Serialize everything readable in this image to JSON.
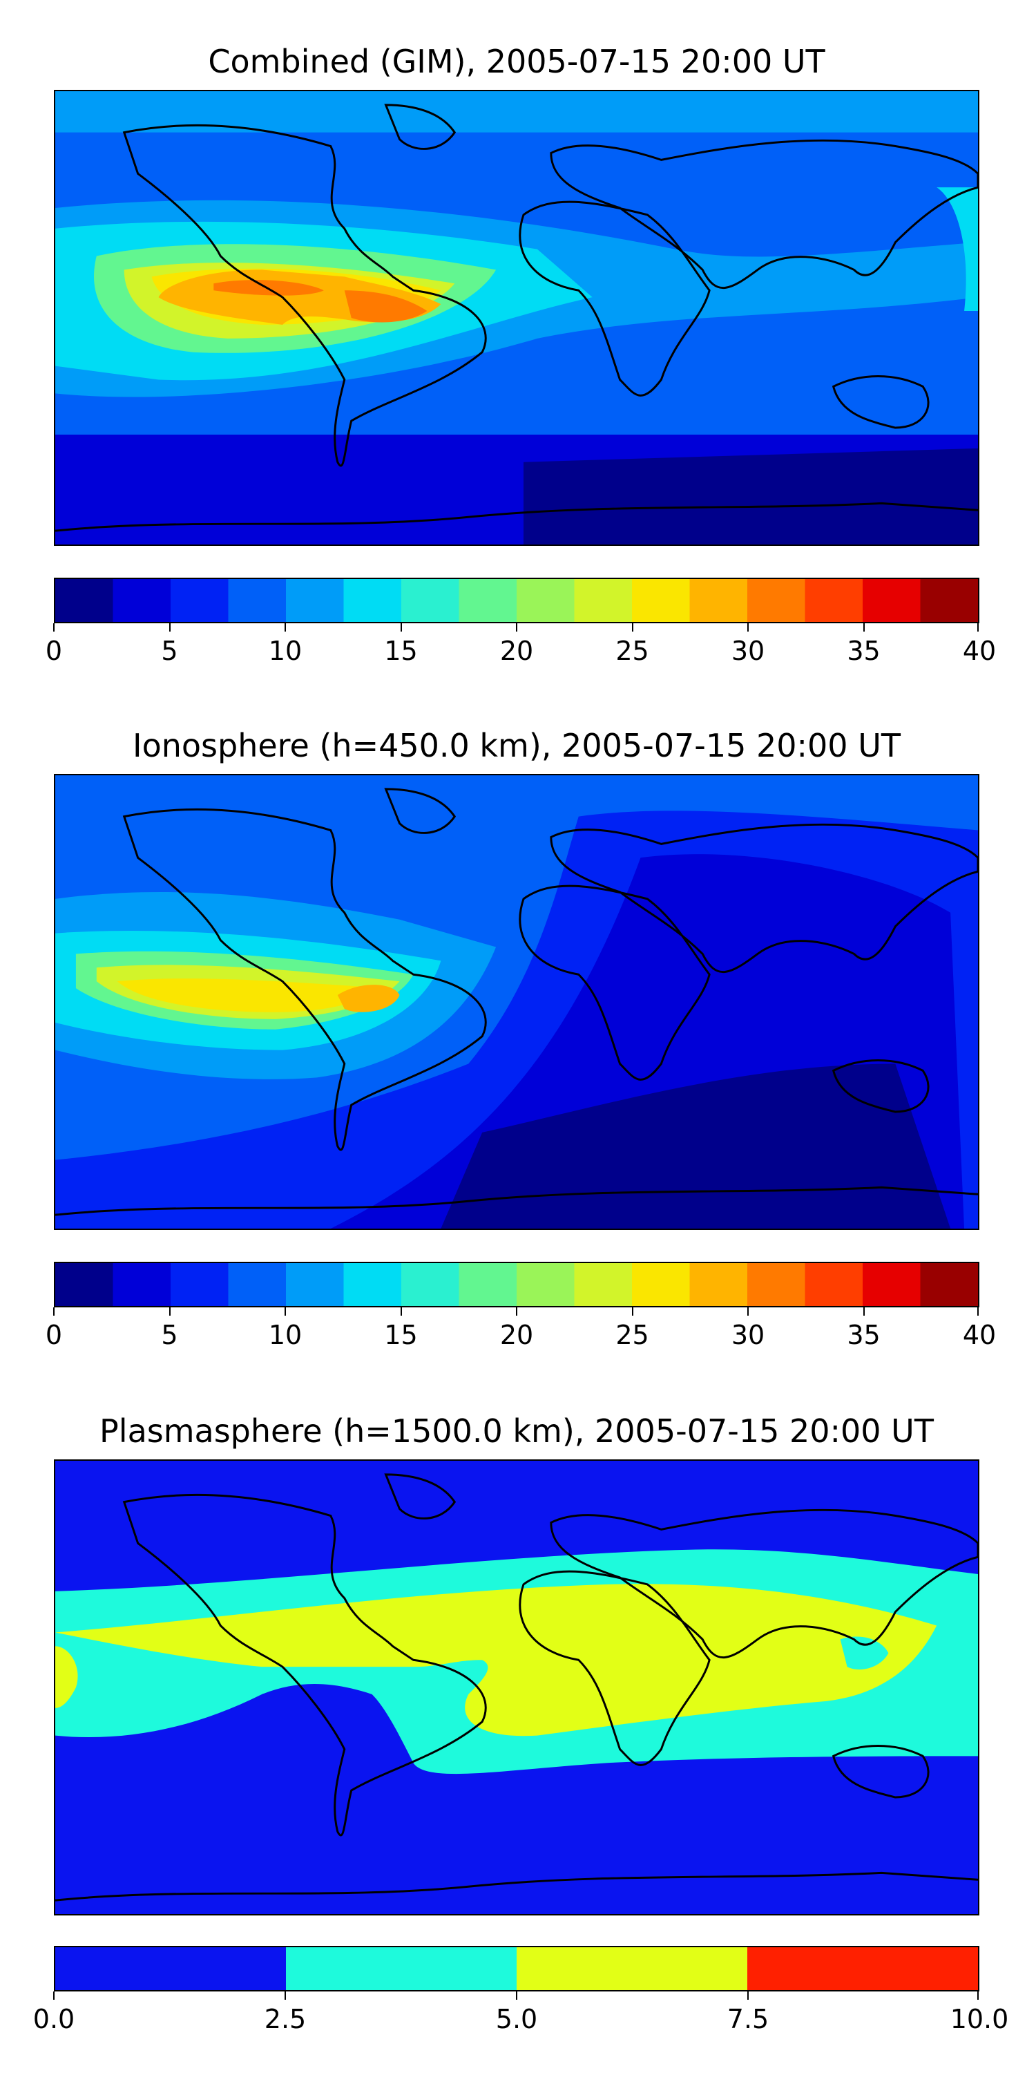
{
  "panels": [
    {
      "title": "Combined (GIM), 2005-07-15 20:00 UT",
      "colorbar": {
        "min": 0,
        "max": 40,
        "levels": 16,
        "tick_labels": [
          "0",
          "5",
          "10",
          "15",
          "20",
          "25",
          "30",
          "35",
          "40"
        ],
        "colors": [
          "#00008b",
          "#0000d8",
          "#0022f4",
          "#0060f8",
          "#009cf8",
          "#00dcf4",
          "#2af0d0",
          "#62f690",
          "#9af458",
          "#d2f42a",
          "#fae600",
          "#ffb400",
          "#ff7a00",
          "#ff3e00",
          "#e60000",
          "#990000"
        ]
      }
    },
    {
      "title": "Ionosphere  (h=450.0 km), 2005-07-15 20:00 UT",
      "colorbar": {
        "min": 0,
        "max": 40,
        "levels": 16,
        "tick_labels": [
          "0",
          "5",
          "10",
          "15",
          "20",
          "25",
          "30",
          "35",
          "40"
        ],
        "colors": [
          "#00008b",
          "#0000d8",
          "#0022f4",
          "#0060f8",
          "#009cf8",
          "#00dcf4",
          "#2af0d0",
          "#62f690",
          "#9af458",
          "#d2f42a",
          "#fae600",
          "#ffb400",
          "#ff7a00",
          "#ff3e00",
          "#e60000",
          "#990000"
        ]
      }
    },
    {
      "title": "Plasmasphere (h=1500.0 km), 2005-07-15 20:00 UT",
      "colorbar": {
        "min": 0,
        "max": 10,
        "levels": 4,
        "tick_labels": [
          "0.0",
          "2.5",
          "5.0",
          "7.5",
          "10.0"
        ],
        "colors": [
          "#0a14f0",
          "#1efadc",
          "#e2ff16",
          "#ff2000"
        ]
      }
    }
  ]
}
